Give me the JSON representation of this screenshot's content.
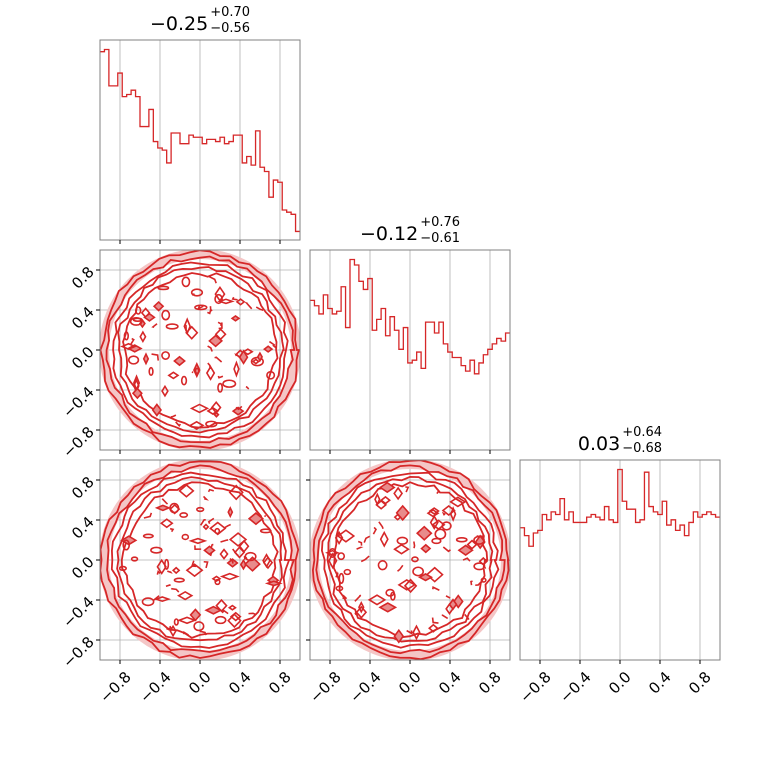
{
  "colors": {
    "line": "#d62728",
    "fill_light": "#f4c6c6",
    "fill_mid": "#e88b8b",
    "grid": "#b0b0b0",
    "frame": "#808080"
  },
  "chart_data": {
    "type": "corner",
    "range": [
      -1.0,
      1.0
    ],
    "tick_values": [
      -0.8,
      -0.4,
      0.0,
      0.4,
      0.8
    ],
    "tick_labels": [
      "−0.8",
      "−0.4",
      "0.0",
      "0.4",
      "0.8"
    ],
    "grid": true,
    "titles": [
      {
        "median": "−0.25",
        "plus": "+0.70",
        "minus": "−0.56"
      },
      {
        "median": "−0.12",
        "plus": "+0.76",
        "minus": "−0.61"
      },
      {
        "median": "0.03",
        "plus": "+0.64",
        "minus": "−0.68"
      }
    ],
    "histograms": [
      {
        "bin_edges": [
          -1.0,
          0.95
        ],
        "bin_width": 0.05,
        "counts": [
          88,
          89,
          72,
          72,
          78,
          67,
          68,
          70,
          67,
          53,
          53,
          61,
          46,
          43,
          42,
          36,
          50,
          50,
          45,
          45,
          49,
          48,
          48,
          45,
          47,
          47,
          46,
          48,
          45,
          46,
          49,
          49,
          36,
          39,
          35,
          51,
          34,
          32,
          20,
          28,
          27,
          14,
          13,
          12,
          4
        ]
      },
      {
        "bin_width": 0.05,
        "counts": [
          55,
          53,
          50,
          57,
          52,
          50,
          51,
          60,
          45,
          70,
          68,
          62,
          59,
          63,
          44,
          48,
          52,
          42,
          49,
          44,
          37,
          45,
          32,
          33,
          36,
          30,
          47,
          47,
          43,
          47,
          39,
          36,
          34,
          34,
          31,
          29,
          33,
          28,
          32,
          35,
          37,
          39,
          41,
          40,
          43
        ]
      },
      {
        "bin_width": 0.05,
        "counts": [
          50,
          47,
          43,
          48,
          49,
          55,
          53,
          56,
          55,
          61,
          53,
          56,
          52,
          52,
          52,
          54,
          55,
          54,
          53,
          58,
          53,
          52,
          72,
          60,
          57,
          57,
          52,
          53,
          71,
          58,
          56,
          55,
          60,
          51,
          53,
          49,
          51,
          47,
          52,
          56,
          54,
          55,
          56,
          55,
          54
        ]
      }
    ],
    "density": {
      "distribution": "uniform on unit disk",
      "radius": 1.0
    }
  }
}
